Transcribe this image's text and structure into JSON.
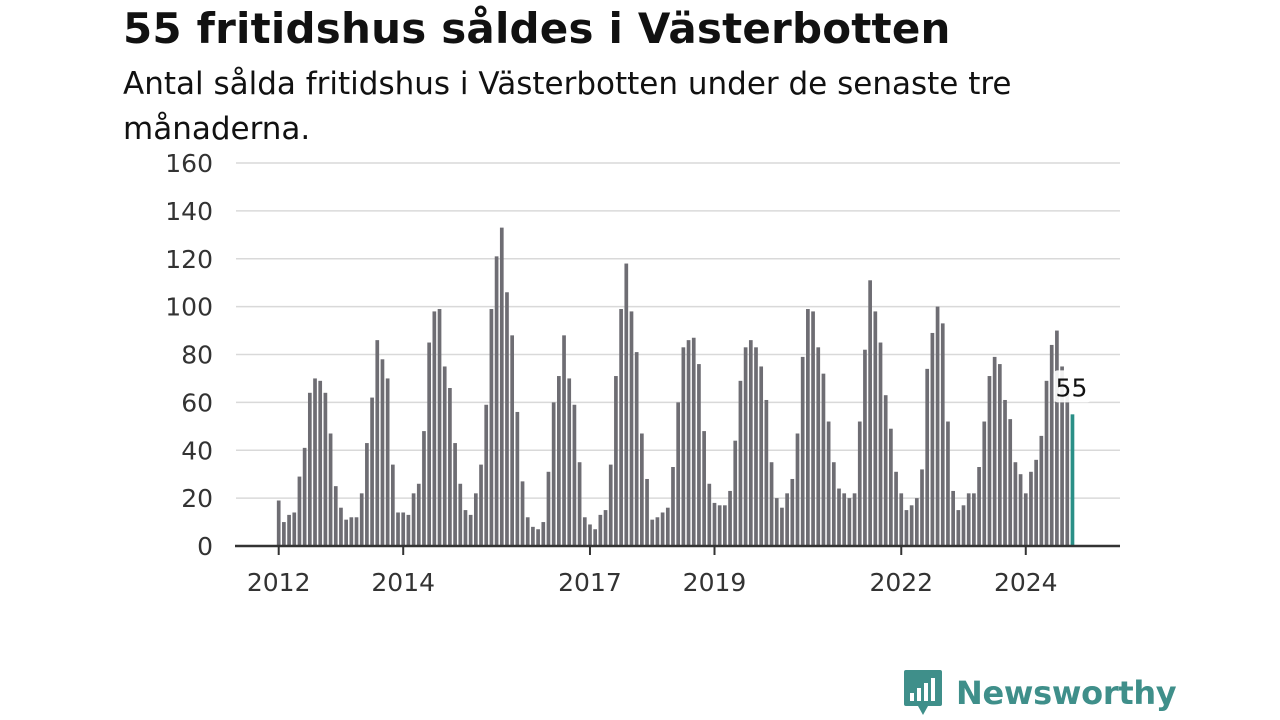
{
  "header": {
    "title": "55 fritidshus såldes i Västerbotten",
    "subtitle": "Antal sålda fritidshus i Västerbotten under de senaste tre månaderna."
  },
  "brand": {
    "name": "Newsworthy",
    "color": "#3f8f8a"
  },
  "chart_data": {
    "type": "bar",
    "y_ticks": [
      0,
      20,
      40,
      60,
      80,
      100,
      120,
      140,
      160
    ],
    "ylim": [
      0,
      160
    ],
    "x_tick_labels": [
      {
        "label": "2012",
        "index": 0
      },
      {
        "label": "2014",
        "index": 24
      },
      {
        "label": "2017",
        "index": 60
      },
      {
        "label": "2019",
        "index": 84
      },
      {
        "label": "2022",
        "index": 120
      },
      {
        "label": "2024",
        "index": 144
      }
    ],
    "grid": true,
    "bar_color": "#6e6d73",
    "highlight_color": "#2a8f87",
    "highlight_label": "55",
    "values": [
      19,
      10,
      13,
      14,
      29,
      41,
      64,
      70,
      69,
      64,
      47,
      25,
      16,
      11,
      12,
      12,
      22,
      43,
      62,
      86,
      78,
      70,
      34,
      14,
      14,
      13,
      22,
      26,
      48,
      85,
      98,
      99,
      75,
      66,
      43,
      26,
      15,
      13,
      22,
      34,
      59,
      99,
      121,
      133,
      106,
      88,
      56,
      27,
      12,
      8,
      7,
      10,
      31,
      60,
      71,
      88,
      70,
      59,
      35,
      12,
      9,
      7,
      13,
      15,
      34,
      71,
      99,
      118,
      98,
      81,
      47,
      28,
      11,
      12,
      14,
      16,
      33,
      60,
      83,
      86,
      87,
      76,
      48,
      26,
      18,
      17,
      17,
      23,
      44,
      69,
      83,
      86,
      83,
      75,
      61,
      35,
      20,
      16,
      22,
      28,
      47,
      79,
      99,
      98,
      83,
      72,
      52,
      35,
      24,
      22,
      20,
      22,
      52,
      82,
      111,
      98,
      85,
      63,
      49,
      31,
      22,
      15,
      17,
      20,
      32,
      74,
      89,
      100,
      93,
      52,
      23,
      15,
      17,
      22,
      22,
      33,
      52,
      71,
      79,
      76,
      61,
      53,
      35,
      30,
      22,
      31,
      36,
      46,
      69,
      84,
      90,
      75,
      66,
      55
    ]
  }
}
